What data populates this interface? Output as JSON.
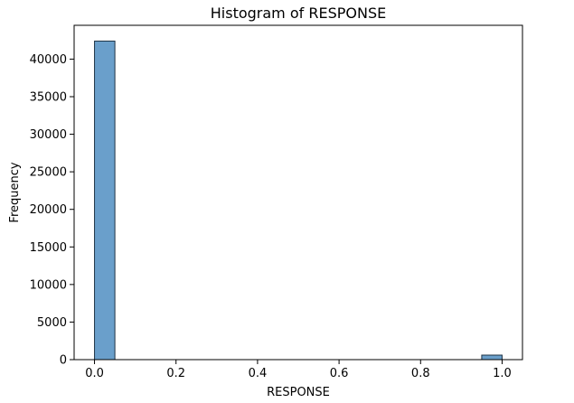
{
  "chart_data": {
    "type": "bar",
    "title": "Histogram of RESPONSE",
    "xlabel": "RESPONSE",
    "ylabel": "Frequency",
    "bin_edges": [
      0.0,
      0.05,
      0.1,
      0.15,
      0.2,
      0.25,
      0.3,
      0.35,
      0.4,
      0.45,
      0.5,
      0.55,
      0.6,
      0.65,
      0.7,
      0.75,
      0.8,
      0.85,
      0.9,
      0.95,
      1.0
    ],
    "values": [
      42400,
      0,
      0,
      0,
      0,
      0,
      0,
      0,
      0,
      0,
      0,
      0,
      0,
      0,
      0,
      0,
      0,
      0,
      0,
      600
    ],
    "xlim": [
      -0.05,
      1.05
    ],
    "ylim": [
      0,
      44500
    ],
    "xticks": [
      0.0,
      0.2,
      0.4,
      0.6,
      0.8,
      1.0
    ],
    "xtick_labels": [
      "0.0",
      "0.2",
      "0.4",
      "0.6",
      "0.8",
      "1.0"
    ],
    "yticks": [
      0,
      5000,
      10000,
      15000,
      20000,
      25000,
      30000,
      35000,
      40000
    ],
    "ytick_labels": [
      "0",
      "5000",
      "10000",
      "15000",
      "20000",
      "25000",
      "30000",
      "35000",
      "40000"
    ],
    "grid": false,
    "bar_color": "#6a9fcb",
    "edge_color": "#1f3345"
  }
}
